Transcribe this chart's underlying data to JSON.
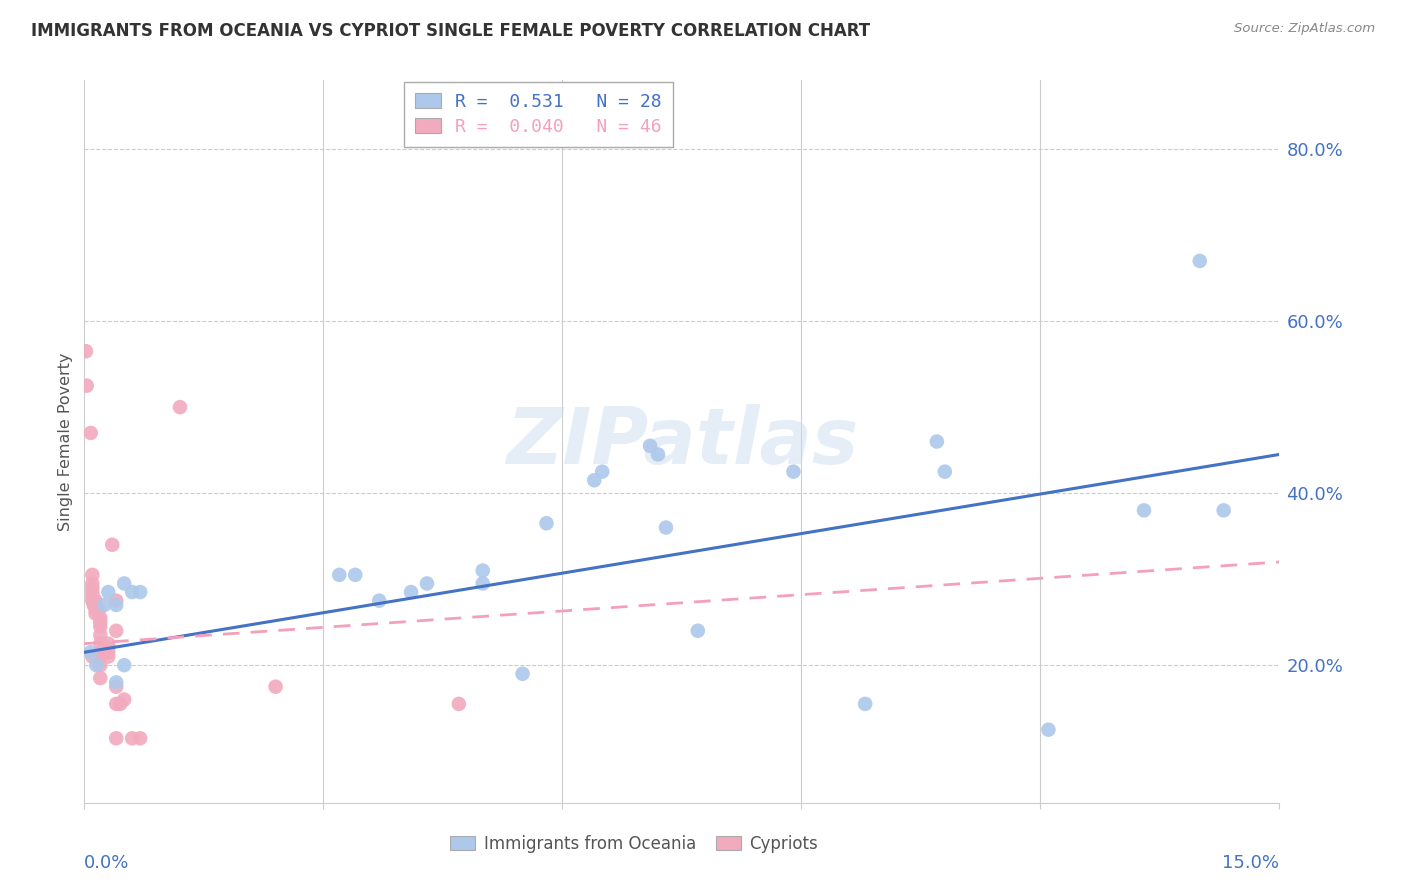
{
  "title": "IMMIGRANTS FROM OCEANIA VS CYPRIOT SINGLE FEMALE POVERTY CORRELATION CHART",
  "source": "Source: ZipAtlas.com",
  "ylabel": "Single Female Poverty",
  "y_ticks": [
    0.2,
    0.4,
    0.6,
    0.8
  ],
  "y_tick_labels": [
    "20.0%",
    "40.0%",
    "60.0%",
    "80.0%"
  ],
  "xmin": 0.0,
  "xmax": 0.15,
  "ymin": 0.04,
  "ymax": 0.88,
  "watermark": "ZIPatlas",
  "blue_color": "#adc8ea",
  "pink_color": "#f2aabe",
  "blue_line_color": "#4472c4",
  "pink_line_color": "#f4a0bb",
  "blue_scatter": [
    [
      0.0008,
      0.215
    ],
    [
      0.0015,
      0.2
    ],
    [
      0.0025,
      0.27
    ],
    [
      0.003,
      0.285
    ],
    [
      0.004,
      0.18
    ],
    [
      0.004,
      0.27
    ],
    [
      0.005,
      0.2
    ],
    [
      0.005,
      0.295
    ],
    [
      0.006,
      0.285
    ],
    [
      0.007,
      0.285
    ],
    [
      0.032,
      0.305
    ],
    [
      0.034,
      0.305
    ],
    [
      0.037,
      0.275
    ],
    [
      0.041,
      0.285
    ],
    [
      0.043,
      0.295
    ],
    [
      0.05,
      0.31
    ],
    [
      0.05,
      0.295
    ],
    [
      0.055,
      0.19
    ],
    [
      0.058,
      0.365
    ],
    [
      0.064,
      0.415
    ],
    [
      0.065,
      0.425
    ],
    [
      0.071,
      0.455
    ],
    [
      0.072,
      0.445
    ],
    [
      0.073,
      0.36
    ],
    [
      0.077,
      0.24
    ],
    [
      0.089,
      0.425
    ],
    [
      0.098,
      0.155
    ],
    [
      0.107,
      0.46
    ],
    [
      0.108,
      0.425
    ],
    [
      0.121,
      0.125
    ],
    [
      0.133,
      0.38
    ],
    [
      0.14,
      0.67
    ],
    [
      0.143,
      0.38
    ]
  ],
  "pink_scatter": [
    [
      0.0002,
      0.565
    ],
    [
      0.0003,
      0.525
    ],
    [
      0.0008,
      0.47
    ],
    [
      0.001,
      0.305
    ],
    [
      0.001,
      0.295
    ],
    [
      0.001,
      0.29
    ],
    [
      0.001,
      0.285
    ],
    [
      0.001,
      0.28
    ],
    [
      0.001,
      0.275
    ],
    [
      0.0012,
      0.275
    ],
    [
      0.0012,
      0.27
    ],
    [
      0.0012,
      0.27
    ],
    [
      0.0014,
      0.275
    ],
    [
      0.0014,
      0.27
    ],
    [
      0.0014,
      0.27
    ],
    [
      0.0014,
      0.265
    ],
    [
      0.0014,
      0.26
    ],
    [
      0.0018,
      0.265
    ],
    [
      0.002,
      0.255
    ],
    [
      0.002,
      0.25
    ],
    [
      0.002,
      0.245
    ],
    [
      0.002,
      0.235
    ],
    [
      0.002,
      0.225
    ],
    [
      0.002,
      0.215
    ],
    [
      0.002,
      0.2
    ],
    [
      0.002,
      0.185
    ],
    [
      0.0025,
      0.22
    ],
    [
      0.0025,
      0.215
    ],
    [
      0.003,
      0.225
    ],
    [
      0.003,
      0.22
    ],
    [
      0.003,
      0.215
    ],
    [
      0.003,
      0.21
    ],
    [
      0.0035,
      0.34
    ],
    [
      0.004,
      0.115
    ],
    [
      0.004,
      0.155
    ],
    [
      0.004,
      0.175
    ],
    [
      0.004,
      0.24
    ],
    [
      0.004,
      0.275
    ],
    [
      0.0045,
      0.155
    ],
    [
      0.005,
      0.16
    ],
    [
      0.006,
      0.115
    ],
    [
      0.007,
      0.115
    ],
    [
      0.012,
      0.5
    ],
    [
      0.024,
      0.175
    ],
    [
      0.047,
      0.155
    ],
    [
      0.001,
      0.21
    ]
  ],
  "blue_line": [
    [
      0.0,
      0.215
    ],
    [
      0.15,
      0.445
    ]
  ],
  "pink_line": [
    [
      0.0,
      0.225
    ],
    [
      0.15,
      0.32
    ]
  ]
}
